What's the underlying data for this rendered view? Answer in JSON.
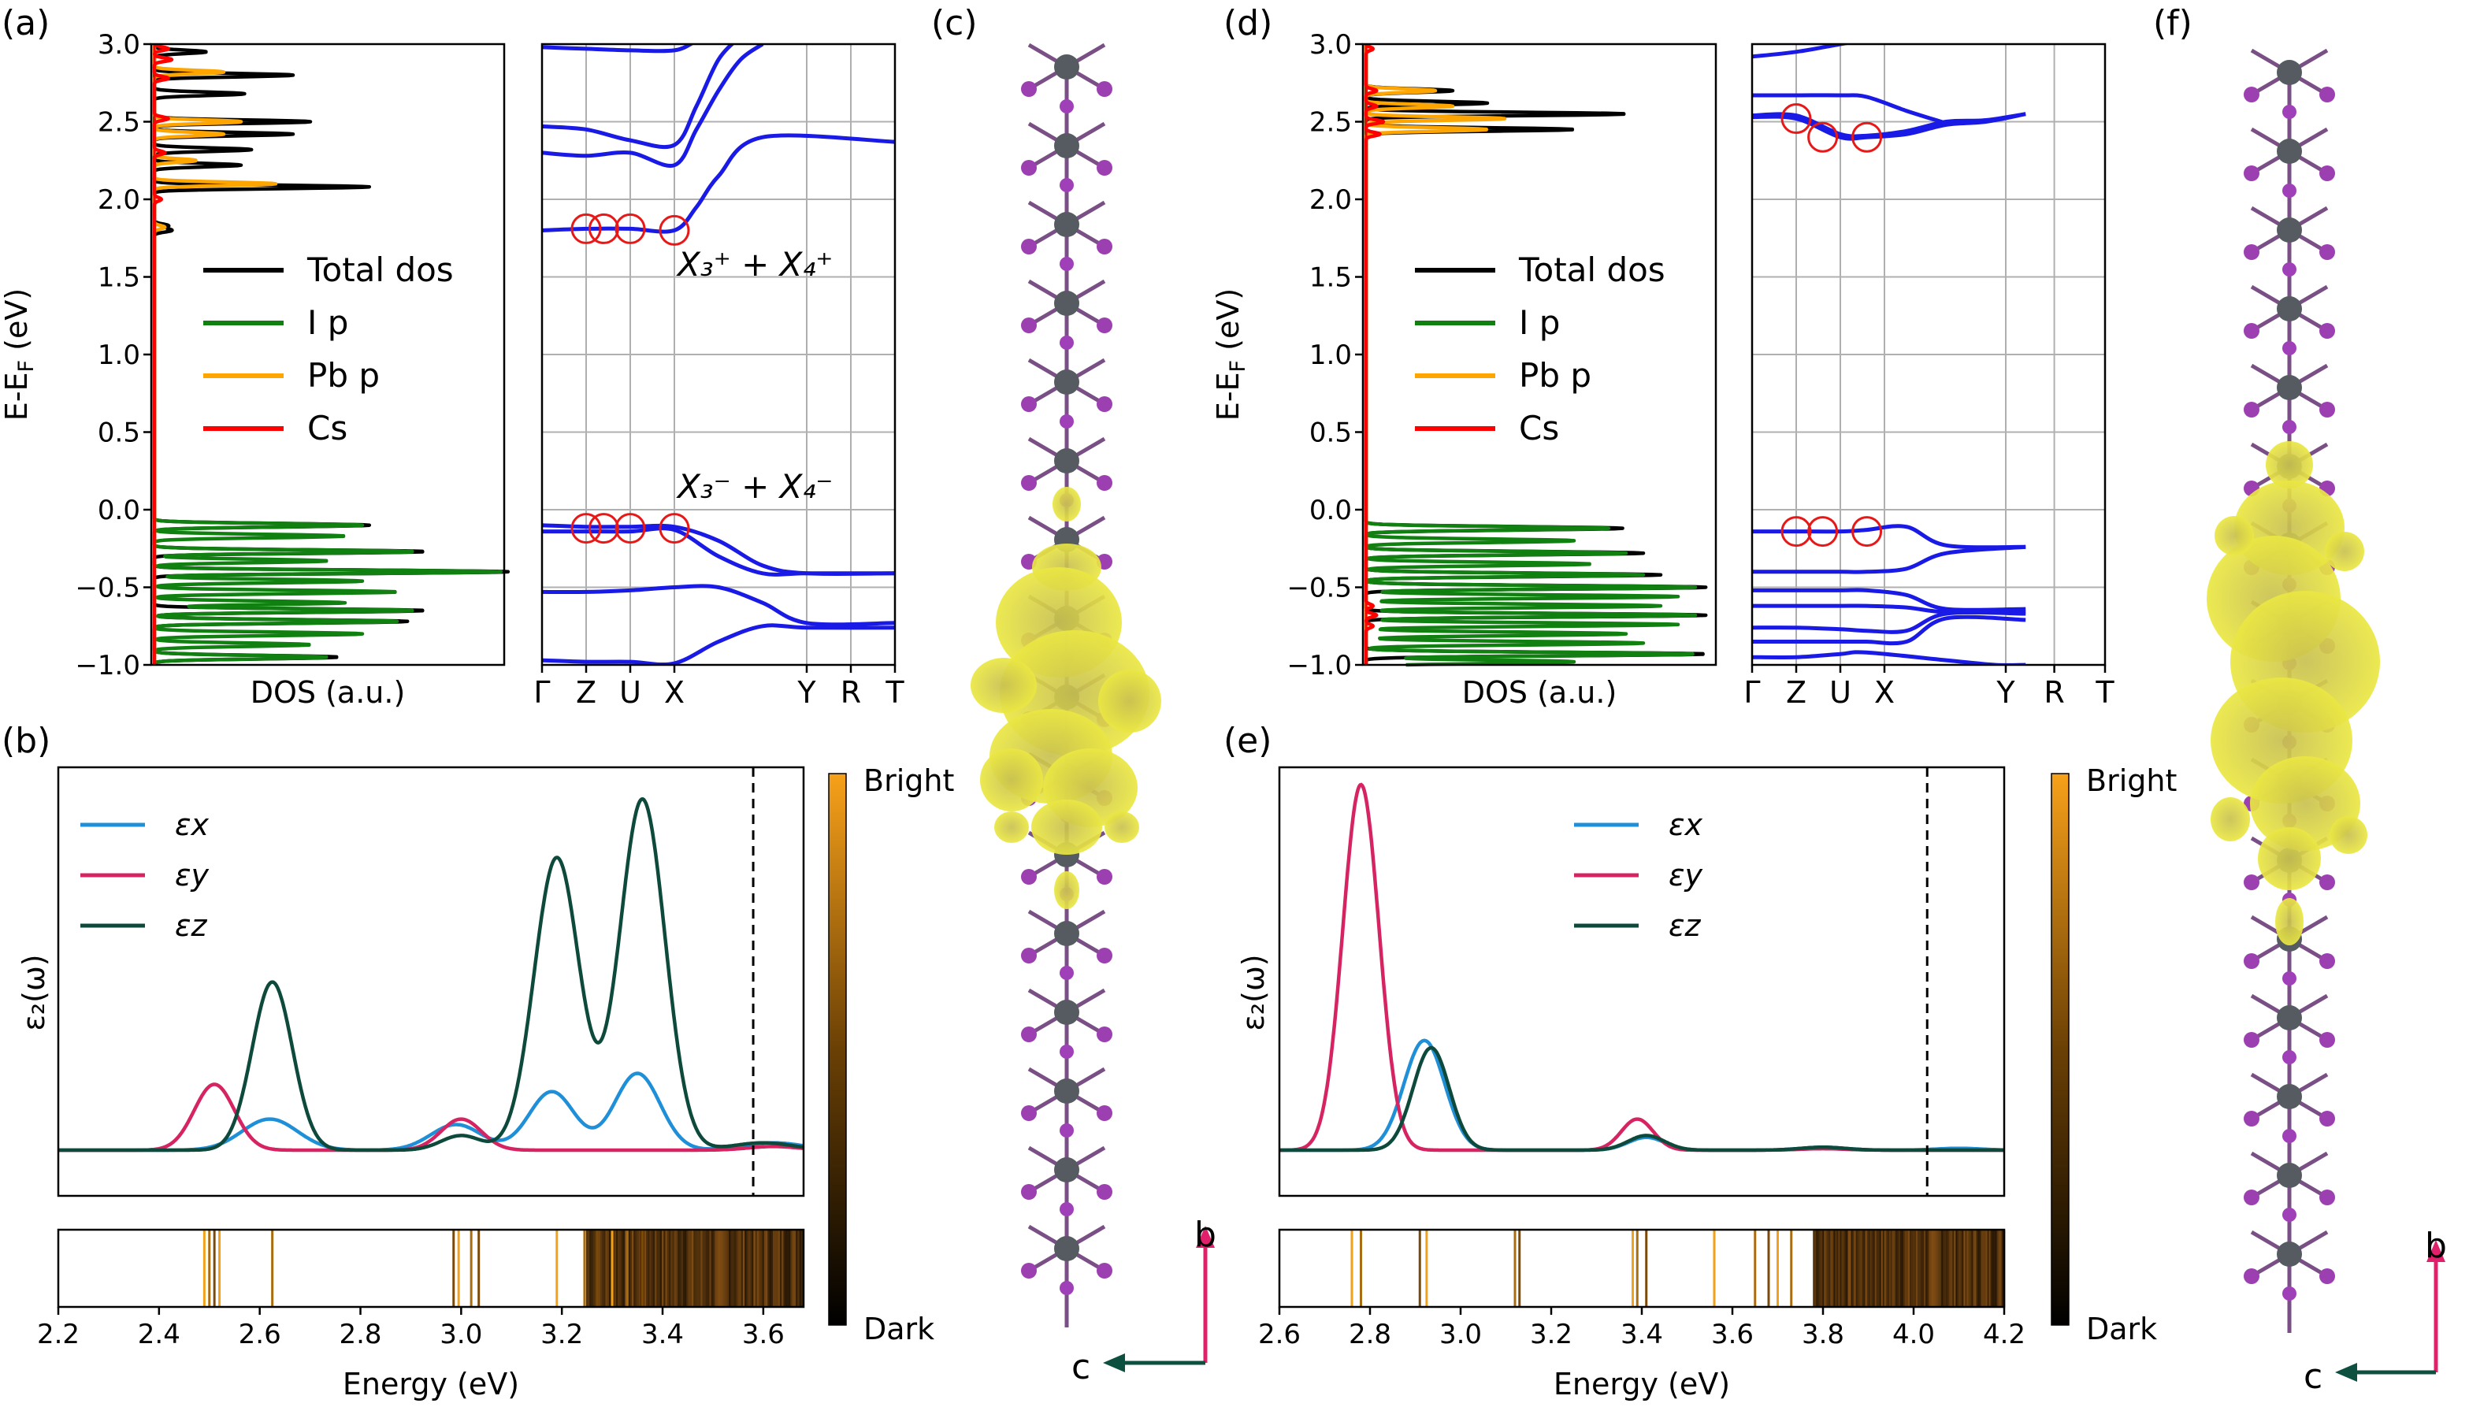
{
  "figure": {
    "panel_labels": [
      "(a)",
      "(b)",
      "(c)",
      "(d)",
      "(e)",
      "(f)"
    ]
  },
  "chart_data": [
    {
      "id": "a_dos",
      "panel": "(a)",
      "type": "line",
      "xlabel": "DOS (a.u.)",
      "ylabel": "E-E_F (eV)",
      "ylim": [
        -1.0,
        3.0
      ],
      "yticks": [
        "3.0",
        "2.5",
        "2.0",
        "1.5",
        "1.0",
        "0.5",
        "0.0",
        "−0.5",
        "−1.0"
      ],
      "legend": [
        "Total dos",
        "I p",
        "Pb p",
        "Cs"
      ],
      "colors": {
        "total": "#000000",
        "ip": "#108010",
        "pbp": "#ffa500",
        "cs": "#ff0000"
      },
      "series": [
        {
          "name": "I p",
          "peaks": [
            [
              -0.1,
              0.6
            ],
            [
              -0.17,
              0.55
            ],
            [
              -0.27,
              0.75
            ],
            [
              -0.33,
              0.5
            ],
            [
              -0.4,
              1.0
            ],
            [
              -0.46,
              0.6
            ],
            [
              -0.53,
              0.7
            ],
            [
              -0.6,
              0.55
            ],
            [
              -0.65,
              0.75
            ],
            [
              -0.72,
              0.7
            ],
            [
              -0.8,
              0.6
            ],
            [
              -0.87,
              0.45
            ],
            [
              -0.95,
              0.5
            ]
          ]
        },
        {
          "name": "Total dos",
          "peaks": [
            [
              -0.1,
              0.62
            ],
            [
              -0.27,
              0.78
            ],
            [
              -0.4,
              1.02
            ],
            [
              -0.65,
              0.78
            ],
            [
              -0.72,
              0.73
            ],
            [
              -0.95,
              0.53
            ],
            [
              1.8,
              0.05
            ],
            [
              1.83,
              0.04
            ],
            [
              2.08,
              0.62
            ],
            [
              2.22,
              0.25
            ],
            [
              2.32,
              0.28
            ],
            [
              2.42,
              0.4
            ],
            [
              2.5,
              0.45
            ],
            [
              2.68,
              0.26
            ],
            [
              2.8,
              0.4
            ],
            [
              2.95,
              0.15
            ]
          ]
        },
        {
          "name": "Pb p",
          "peaks": [
            [
              1.82,
              0.03
            ],
            [
              2.1,
              0.35
            ],
            [
              2.25,
              0.12
            ],
            [
              2.42,
              0.2
            ],
            [
              2.5,
              0.25
            ],
            [
              2.82,
              0.2
            ]
          ]
        },
        {
          "name": "Cs",
          "peaks": [
            [
              2.0,
              0.02
            ],
            [
              2.3,
              0.03
            ],
            [
              2.52,
              0.04
            ],
            [
              2.78,
              0.04
            ],
            [
              2.9,
              0.05
            ],
            [
              2.97,
              0.04
            ]
          ]
        }
      ]
    },
    {
      "id": "a_bands",
      "panel": "(a)",
      "type": "line",
      "xticks": [
        "Γ",
        "Z",
        "U",
        "X",
        "Y",
        "R",
        "T"
      ],
      "ylim": [
        -1.0,
        3.0
      ],
      "annotations": [
        "X₃⁺ + X₄⁺",
        "X₃⁻ + X₄⁻"
      ],
      "highlight_points": [
        [
          1.0,
          1.81
        ],
        [
          1.4,
          1.81
        ],
        [
          2.0,
          1.81
        ],
        [
          3.0,
          1.8
        ],
        [
          1.0,
          -0.12
        ],
        [
          1.4,
          -0.12
        ],
        [
          2.0,
          -0.12
        ],
        [
          3.0,
          -0.12
        ]
      ],
      "series": [
        {
          "name": "band1",
          "x": [
            0,
            1,
            2,
            3,
            4,
            5,
            6,
            8
          ],
          "y": [
            -0.97,
            -0.98,
            -0.98,
            -0.99,
            -0.85,
            -0.75,
            -0.76,
            -0.76
          ]
        },
        {
          "name": "band2",
          "x": [
            0,
            1,
            2,
            3,
            4,
            5,
            6,
            8
          ],
          "y": [
            -0.53,
            -0.53,
            -0.52,
            -0.5,
            -0.5,
            -0.6,
            -0.73,
            -0.73
          ]
        },
        {
          "name": "band3",
          "x": [
            0,
            1,
            2,
            3,
            4,
            5,
            6,
            8
          ],
          "y": [
            -0.14,
            -0.14,
            -0.14,
            -0.13,
            -0.3,
            -0.41,
            -0.41,
            -0.41
          ]
        },
        {
          "name": "band4",
          "x": [
            0,
            1,
            2,
            3,
            4,
            5,
            6,
            8
          ],
          "y": [
            -0.1,
            -0.11,
            -0.11,
            -0.11,
            -0.2,
            -0.36,
            -0.41,
            -0.41
          ]
        },
        {
          "name": "band5",
          "x": [
            0,
            1,
            2,
            3,
            3.5,
            4,
            5,
            8
          ],
          "y": [
            1.8,
            1.81,
            1.81,
            1.8,
            1.95,
            2.15,
            2.4,
            2.37
          ]
        },
        {
          "name": "band6",
          "x": [
            0,
            1,
            2,
            3,
            3.5,
            4,
            4.5,
            5
          ],
          "y": [
            2.3,
            2.28,
            2.3,
            2.22,
            2.45,
            2.7,
            2.9,
            3.0
          ]
        },
        {
          "name": "band7",
          "x": [
            0,
            1,
            2,
            3,
            3.5,
            4,
            4.5
          ],
          "y": [
            2.47,
            2.45,
            2.38,
            2.35,
            2.6,
            2.9,
            3.05
          ]
        },
        {
          "name": "band8",
          "x": [
            0,
            1,
            2,
            3,
            3.5,
            4
          ],
          "y": [
            2.98,
            2.97,
            2.96,
            2.96,
            3.02,
            3.08
          ]
        }
      ]
    },
    {
      "id": "b_eps",
      "panel": "(b)",
      "type": "line",
      "xlabel": "Energy (eV)",
      "ylabel": "ε₂(ω)",
      "xlim": [
        2.2,
        3.68
      ],
      "xticks": [
        "2.2",
        "2.4",
        "2.6",
        "2.8",
        "3.0",
        "3.2",
        "3.4",
        "3.6"
      ],
      "vline": 3.58,
      "series": [
        {
          "name": "εx",
          "color": "#1f8fd8",
          "peaks": [
            [
              2.62,
              0.085,
              0.055
            ],
            [
              2.99,
              0.07,
              0.05
            ],
            [
              3.18,
              0.16,
              0.045
            ],
            [
              3.35,
              0.21,
              0.045
            ],
            [
              3.62,
              0.02,
              0.06
            ]
          ]
        },
        {
          "name": "εy",
          "color": "#d62462",
          "peaks": [
            [
              2.51,
              0.18,
              0.04
            ],
            [
              3.0,
              0.085,
              0.04
            ],
            [
              3.62,
              0.01,
              0.05
            ]
          ]
        },
        {
          "name": "εz",
          "color": "#0e4a3c",
          "peaks": [
            [
              2.625,
              0.46,
              0.04
            ],
            [
              3.0,
              0.04,
              0.04
            ],
            [
              3.19,
              0.8,
              0.045
            ],
            [
              3.36,
              0.96,
              0.045
            ],
            [
              3.6,
              0.02,
              0.06
            ]
          ]
        }
      ]
    },
    {
      "id": "b_exc",
      "panel": "(b)",
      "type": "heatmap",
      "colorbar": {
        "top": "Bright",
        "bottom": "Dark"
      },
      "bright_lines": [
        2.49,
        2.5,
        2.51,
        2.52,
        2.625,
        2.985,
        2.995,
        3.02,
        3.035,
        3.19,
        3.245,
        3.27,
        3.3,
        3.33,
        3.36
      ],
      "dense_region": [
        3.25,
        3.68
      ]
    },
    {
      "id": "d_dos",
      "panel": "(d)",
      "type": "line",
      "xlabel": "DOS (a.u.)",
      "ylabel": "E-E_F (eV)",
      "ylim": [
        -1.0,
        3.0
      ],
      "yticks": [
        "3.0",
        "2.5",
        "2.0",
        "1.5",
        "1.0",
        "0.5",
        "0.0",
        "−0.5",
        "−1.0"
      ],
      "legend": [
        "Total dos",
        "I p",
        "Pb p",
        "Cs"
      ],
      "series": [
        {
          "name": "I p",
          "peaks": [
            [
              -0.12,
              0.7
            ],
            [
              -0.2,
              0.6
            ],
            [
              -0.28,
              0.75
            ],
            [
              -0.35,
              0.65
            ],
            [
              -0.42,
              0.8
            ],
            [
              -0.5,
              0.95
            ],
            [
              -0.56,
              0.9
            ],
            [
              -0.62,
              0.85
            ],
            [
              -0.68,
              0.95
            ],
            [
              -0.74,
              0.9
            ],
            [
              -0.8,
              0.75
            ],
            [
              -0.86,
              0.8
            ],
            [
              -0.93,
              0.95
            ],
            [
              -0.98,
              0.6
            ]
          ]
        },
        {
          "name": "Total dos",
          "peaks": [
            [
              -0.12,
              0.74
            ],
            [
              -0.28,
              0.8
            ],
            [
              -0.42,
              0.85
            ],
            [
              -0.5,
              0.98
            ],
            [
              -0.68,
              0.98
            ],
            [
              -0.93,
              0.98
            ],
            [
              2.45,
              0.6
            ],
            [
              2.55,
              0.75
            ],
            [
              2.62,
              0.35
            ],
            [
              2.7,
              0.25
            ]
          ]
        },
        {
          "name": "Pb p",
          "peaks": [
            [
              2.45,
              0.35
            ],
            [
              2.52,
              0.4
            ],
            [
              2.6,
              0.25
            ],
            [
              2.7,
              0.2
            ]
          ]
        },
        {
          "name": "Cs",
          "peaks": [
            [
              2.42,
              0.04
            ],
            [
              2.5,
              0.05
            ],
            [
              2.6,
              0.03
            ],
            [
              2.7,
              0.03
            ],
            [
              2.97,
              0.02
            ],
            [
              -0.62,
              0.02
            ],
            [
              -0.68,
              0.03
            ],
            [
              -0.75,
              0.02
            ]
          ]
        }
      ]
    },
    {
      "id": "d_bands",
      "panel": "(d)",
      "type": "line",
      "xticks": [
        "Γ",
        "Z",
        "U",
        "X",
        "Y",
        "R",
        "T"
      ],
      "ylim": [
        -1.0,
        3.0
      ],
      "highlight_points": [
        [
          1.0,
          2.52
        ],
        [
          1.6,
          2.4
        ],
        [
          2.6,
          2.4
        ],
        [
          1.0,
          -0.14
        ],
        [
          1.6,
          -0.14
        ],
        [
          2.6,
          -0.14
        ]
      ],
      "series": [
        {
          "name": "band1",
          "x": [
            0,
            1,
            2,
            2.6,
            4.4,
            5.5,
            6.2
          ],
          "y": [
            -0.95,
            -0.95,
            -0.93,
            -0.92,
            -0.97,
            -1.0,
            -1.0
          ]
        },
        {
          "name": "band2",
          "x": [
            0,
            1,
            2,
            2.6,
            3.5,
            4.4,
            6.2
          ],
          "y": [
            -0.85,
            -0.85,
            -0.85,
            -0.85,
            -0.85,
            -0.7,
            -0.71
          ]
        },
        {
          "name": "band3",
          "x": [
            0,
            1,
            2,
            2.6,
            3.5,
            4.4,
            6.2
          ],
          "y": [
            -0.76,
            -0.76,
            -0.77,
            -0.78,
            -0.78,
            -0.67,
            -0.67
          ]
        },
        {
          "name": "band4",
          "x": [
            0,
            1,
            2,
            2.6,
            3.5,
            4.4,
            6.2
          ],
          "y": [
            -0.62,
            -0.62,
            -0.62,
            -0.62,
            -0.63,
            -0.66,
            -0.66
          ]
        },
        {
          "name": "band5",
          "x": [
            0,
            1,
            2,
            2.6,
            3.5,
            4.4,
            6.2
          ],
          "y": [
            -0.52,
            -0.52,
            -0.52,
            -0.52,
            -0.55,
            -0.64,
            -0.64
          ]
        },
        {
          "name": "band6",
          "x": [
            0,
            1,
            2,
            2.6,
            3.5,
            4.4,
            6.2
          ],
          "y": [
            -0.4,
            -0.4,
            -0.4,
            -0.4,
            -0.38,
            -0.28,
            -0.24
          ]
        },
        {
          "name": "band7",
          "x": [
            0,
            1,
            2,
            2.6,
            3.5,
            4.4,
            6.2
          ],
          "y": [
            -0.14,
            -0.14,
            -0.14,
            -0.13,
            -0.11,
            -0.23,
            -0.24
          ]
        },
        {
          "name": "band8",
          "x": [
            0,
            1,
            2,
            2.6,
            3.5,
            4.4,
            5.3,
            6.2
          ],
          "y": [
            2.53,
            2.52,
            2.4,
            2.4,
            2.42,
            2.48,
            2.5,
            2.55
          ]
        },
        {
          "name": "band9",
          "x": [
            0,
            1,
            2,
            2.6,
            3.5,
            4.4,
            5.3,
            6.2
          ],
          "y": [
            2.54,
            2.54,
            2.42,
            2.41,
            2.44,
            2.5,
            2.51,
            2.55
          ]
        },
        {
          "name": "band10",
          "x": [
            0,
            1,
            2,
            2.6,
            3.5,
            4.4
          ],
          "y": [
            2.67,
            2.67,
            2.67,
            2.66,
            2.57,
            2.49
          ]
        },
        {
          "name": "band11",
          "x": [
            0,
            1,
            2,
            3
          ],
          "y": [
            2.92,
            2.95,
            3.0,
            3.05
          ]
        }
      ]
    },
    {
      "id": "e_eps",
      "panel": "(e)",
      "type": "line",
      "xlabel": "Energy (eV)",
      "ylabel": "ε₂(ω)",
      "xlim": [
        2.6,
        4.2
      ],
      "xticks": [
        "2.6",
        "2.8",
        "3.0",
        "3.2",
        "3.4",
        "3.6",
        "3.8",
        "4.0",
        "4.2"
      ],
      "vline": 4.03,
      "series": [
        {
          "name": "εx",
          "color": "#1f8fd8",
          "peaks": [
            [
              2.92,
              0.3,
              0.045
            ],
            [
              3.41,
              0.035,
              0.04
            ],
            [
              3.8,
              0.008,
              0.05
            ],
            [
              4.1,
              0.005,
              0.05
            ]
          ]
        },
        {
          "name": "εy",
          "color": "#d62462",
          "peaks": [
            [
              2.78,
              1.0,
              0.04
            ],
            [
              3.39,
              0.085,
              0.035
            ],
            [
              3.8,
              0.004,
              0.05
            ]
          ]
        },
        {
          "name": "εz",
          "color": "#0e4a3c",
          "peaks": [
            [
              2.935,
              0.28,
              0.04
            ],
            [
              3.41,
              0.04,
              0.04
            ],
            [
              3.8,
              0.008,
              0.05
            ]
          ]
        }
      ]
    },
    {
      "id": "e_exc",
      "panel": "(e)",
      "type": "heatmap",
      "colorbar": {
        "top": "Bright",
        "bottom": "Dark"
      },
      "bright_lines": [
        2.76,
        2.78,
        2.91,
        2.925,
        3.12,
        3.13,
        3.38,
        3.39,
        3.41,
        3.56,
        3.65,
        3.68,
        3.7,
        3.73
      ],
      "dense_region": [
        3.78,
        4.2
      ]
    },
    {
      "id": "c_struct",
      "panel": "(c)",
      "type": "diagram",
      "axes": {
        "vertical": "b",
        "horizontal": "c"
      }
    },
    {
      "id": "f_struct",
      "panel": "(f)",
      "type": "diagram",
      "axes": {
        "vertical": "b",
        "horizontal": "c"
      }
    }
  ]
}
